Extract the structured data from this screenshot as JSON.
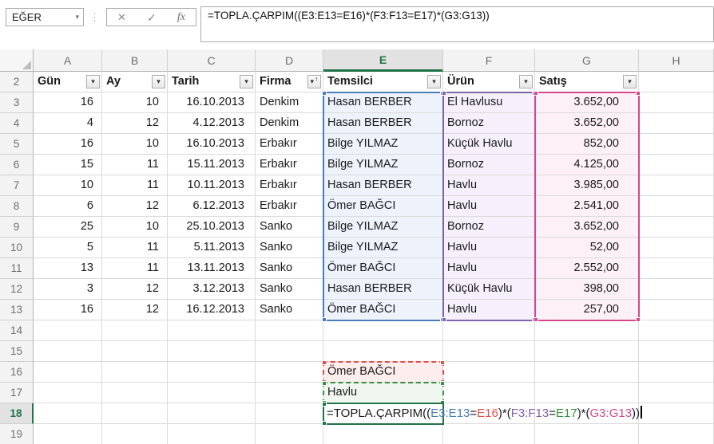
{
  "formula_bar": {
    "name_box_value": "EĞER",
    "name_box_dropdown_icon": "▾",
    "separator_icon": "⋮",
    "cancel_icon": "✕",
    "enter_icon": "✓",
    "insert_function_icon": "fx",
    "formula": "=TOPLA.ÇARPIM((E3:E13=E16)*(F3:F13=E17)*(G3:G13))"
  },
  "sheet": {
    "columns": [
      "A",
      "B",
      "C",
      "D",
      "E",
      "F",
      "G",
      "H"
    ],
    "selected_column": "E",
    "selected_row_header": 18,
    "accent_color": "#217346",
    "icons": {
      "filter_dropdown": "▾",
      "sort_ascending": "↑"
    },
    "filter_row": {
      "num": 2,
      "cells": [
        {
          "col": "A",
          "label": "Gün",
          "filter": "dropdown"
        },
        {
          "col": "B",
          "label": "Ay",
          "filter": "dropdown"
        },
        {
          "col": "C",
          "label": "Tarih",
          "filter": "dropdown"
        },
        {
          "col": "D",
          "label": "Firma",
          "filter": "dropdown-sorted-ascending"
        },
        {
          "col": "E",
          "label": "Temsilci",
          "filter": "dropdown"
        },
        {
          "col": "F",
          "label": "Ürün",
          "filter": "dropdown"
        },
        {
          "col": "G",
          "label": "Satış",
          "filter": "dropdown"
        }
      ]
    },
    "rows": [
      {
        "num": 3,
        "cells": [
          "16",
          "10",
          "16.10.2013",
          "Denkim",
          "Hasan BERBER",
          "El Havlusu",
          "3.652,00",
          ""
        ]
      },
      {
        "num": 4,
        "cells": [
          "4",
          "12",
          "4.12.2013",
          "Denkim",
          "Hasan BERBER",
          "Bornoz",
          "3.652,00",
          ""
        ]
      },
      {
        "num": 5,
        "cells": [
          "16",
          "10",
          "16.10.2013",
          "Erbakır",
          "Bilge YILMAZ",
          "Küçük Havlu",
          "852,00",
          ""
        ]
      },
      {
        "num": 6,
        "cells": [
          "15",
          "11",
          "15.11.2013",
          "Erbakır",
          "Bilge YILMAZ",
          "Bornoz",
          "4.125,00",
          ""
        ]
      },
      {
        "num": 7,
        "cells": [
          "10",
          "11",
          "10.11.2013",
          "Erbakır",
          "Hasan BERBER",
          "Havlu",
          "3.985,00",
          ""
        ]
      },
      {
        "num": 8,
        "cells": [
          "6",
          "12",
          "6.12.2013",
          "Erbakır",
          "Ömer BAĞCI",
          "Havlu",
          "2.541,00",
          ""
        ]
      },
      {
        "num": 9,
        "cells": [
          "25",
          "10",
          "25.10.2013",
          "Sanko",
          "Bilge YILMAZ",
          "Bornoz",
          "3.652,00",
          ""
        ]
      },
      {
        "num": 10,
        "cells": [
          "5",
          "11",
          "5.11.2013",
          "Sanko",
          "Bilge YILMAZ",
          "Havlu",
          "52,00",
          ""
        ]
      },
      {
        "num": 11,
        "cells": [
          "13",
          "11",
          "13.11.2013",
          "Sanko",
          "Ömer BAĞCI",
          "Havlu",
          "2.552,00",
          ""
        ]
      },
      {
        "num": 12,
        "cells": [
          "3",
          "12",
          "3.12.2013",
          "Sanko",
          "Hasan BERBER",
          "Küçük Havlu",
          "398,00",
          ""
        ]
      },
      {
        "num": 13,
        "cells": [
          "16",
          "12",
          "16.12.2013",
          "Sanko",
          "Ömer BAĞCI",
          "Havlu",
          "257,00",
          ""
        ]
      },
      {
        "num": 14,
        "cells": [
          "",
          "",
          "",
          "",
          "",
          "",
          "",
          ""
        ]
      },
      {
        "num": 15,
        "cells": [
          "",
          "",
          "",
          "",
          "",
          "",
          "",
          ""
        ]
      },
      {
        "num": 16,
        "cells": [
          "",
          "",
          "",
          "",
          "Ömer BAĞCI",
          "",
          "",
          ""
        ]
      },
      {
        "num": 17,
        "cells": [
          "",
          "",
          "",
          "",
          "Havlu",
          "",
          "",
          ""
        ]
      },
      {
        "num": 18,
        "cells": [
          "",
          "",
          "",
          "",
          "",
          "",
          "",
          ""
        ]
      },
      {
        "num": 19,
        "cells": [
          "",
          "",
          "",
          "",
          "",
          "",
          "",
          ""
        ]
      }
    ],
    "highlighted_ranges": [
      {
        "ref": "E3:E13",
        "border_color": "#4a7ebb",
        "fill_color": "#eef3fb"
      },
      {
        "ref": "F3:F13",
        "border_color": "#7e63ab",
        "fill_color": "#f5f0fb"
      },
      {
        "ref": "G3:G13",
        "border_color": "#d2498c",
        "fill_color": "#fdf1f7"
      },
      {
        "ref": "E16",
        "border_color": "#e0504d",
        "fill_color": "#fdeeed"
      },
      {
        "ref": "E17",
        "border_color": "#35913f",
        "fill_color": "#eff7ef"
      }
    ],
    "editing_cell": {
      "ref": "E18",
      "border_color": "#217346",
      "formula_segments": [
        {
          "text": "=TOPLA.ÇARPIM((",
          "color": "#1a1a1a"
        },
        {
          "text": "E3:E13",
          "color": "#4a7ebb"
        },
        {
          "text": "=",
          "color": "#1a1a1a"
        },
        {
          "text": "E16",
          "color": "#e0504d"
        },
        {
          "text": ")*(",
          "color": "#1a1a1a"
        },
        {
          "text": "F3:F13",
          "color": "#7e63ab"
        },
        {
          "text": "=",
          "color": "#1a1a1a"
        },
        {
          "text": "E17",
          "color": "#35913f"
        },
        {
          "text": ")*(",
          "color": "#1a1a1a"
        },
        {
          "text": "G3:G13",
          "color": "#d2498c"
        },
        {
          "text": "))",
          "color": "#1a1a1a"
        }
      ]
    }
  }
}
